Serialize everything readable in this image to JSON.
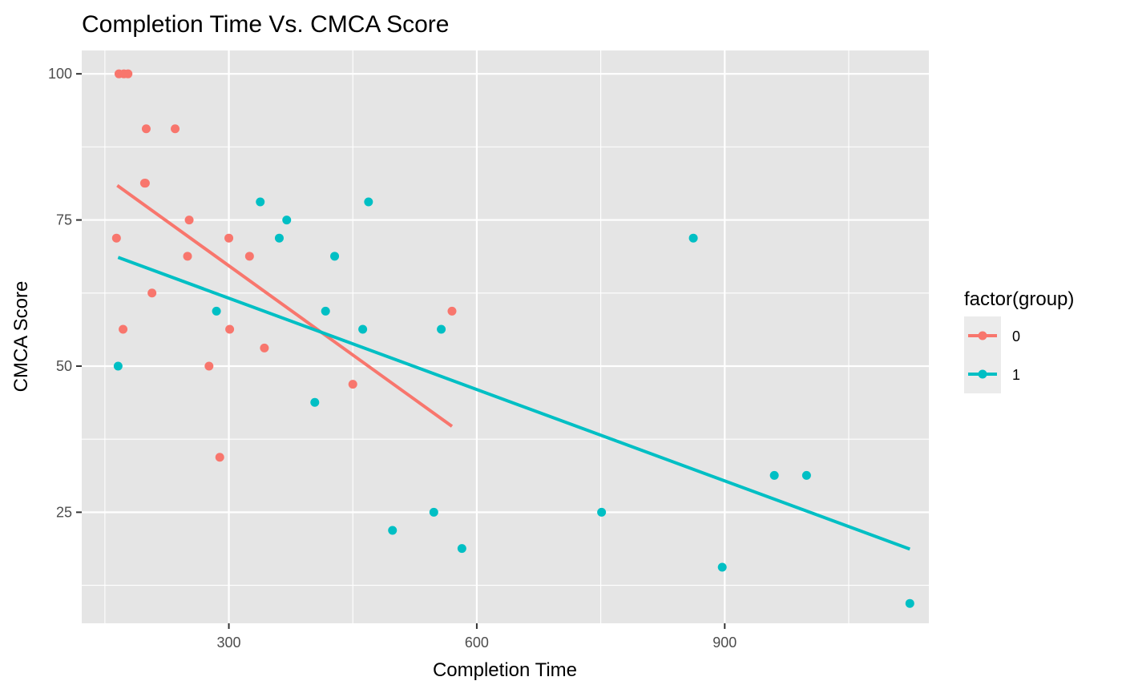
{
  "chart_data": {
    "type": "scatter",
    "title": "Completion Time Vs. CMCA Score",
    "xlabel": "Completion Time",
    "ylabel": "CMCA Score",
    "xlim": [
      122,
      1147
    ],
    "ylim": [
      6,
      104
    ],
    "x_ticks": [
      300,
      600,
      900
    ],
    "y_ticks": [
      25,
      50,
      75,
      100
    ],
    "x_minor": [
      150,
      450,
      750,
      1050
    ],
    "y_minor": [
      12.5,
      37.5,
      62.5,
      87.5
    ],
    "grid": true,
    "panel_background": "#e5e5e5",
    "legend": {
      "title": "factor(group)",
      "position": "right"
    },
    "series": [
      {
        "name": "0",
        "color": "#f8766d",
        "points": [
          [
            167,
            100
          ],
          [
            173,
            100
          ],
          [
            178,
            100
          ],
          [
            200,
            90.6
          ],
          [
            235,
            90.6
          ],
          [
            198,
            81.3
          ],
          [
            199,
            81.3
          ],
          [
            252,
            75
          ],
          [
            164,
            71.9
          ],
          [
            300,
            71.9
          ],
          [
            250,
            68.8
          ],
          [
            325,
            68.8
          ],
          [
            207,
            62.5
          ],
          [
            570,
            59.4
          ],
          [
            172,
            56.3
          ],
          [
            301,
            56.3
          ],
          [
            343,
            53.1
          ],
          [
            276,
            50
          ],
          [
            450,
            46.9
          ],
          [
            289,
            34.4
          ]
        ],
        "fit": [
          [
            165,
            80.9
          ],
          [
            570,
            39.7
          ]
        ]
      },
      {
        "name": "1",
        "color": "#00bfc4",
        "points": [
          [
            338,
            78.1
          ],
          [
            469,
            78.1
          ],
          [
            370,
            75
          ],
          [
            361,
            71.9
          ],
          [
            862,
            71.9
          ],
          [
            428,
            68.8
          ],
          [
            285,
            59.4
          ],
          [
            417,
            59.4
          ],
          [
            462,
            56.3
          ],
          [
            557,
            56.3
          ],
          [
            166,
            50
          ],
          [
            404,
            43.8
          ],
          [
            960,
            31.3
          ],
          [
            999,
            31.3
          ],
          [
            548,
            25
          ],
          [
            751,
            25
          ],
          [
            498,
            21.9
          ],
          [
            582,
            18.8
          ],
          [
            897,
            15.6
          ],
          [
            1124,
            9.4
          ]
        ],
        "fit": [
          [
            166,
            68.6
          ],
          [
            1124,
            18.7
          ]
        ]
      }
    ]
  }
}
